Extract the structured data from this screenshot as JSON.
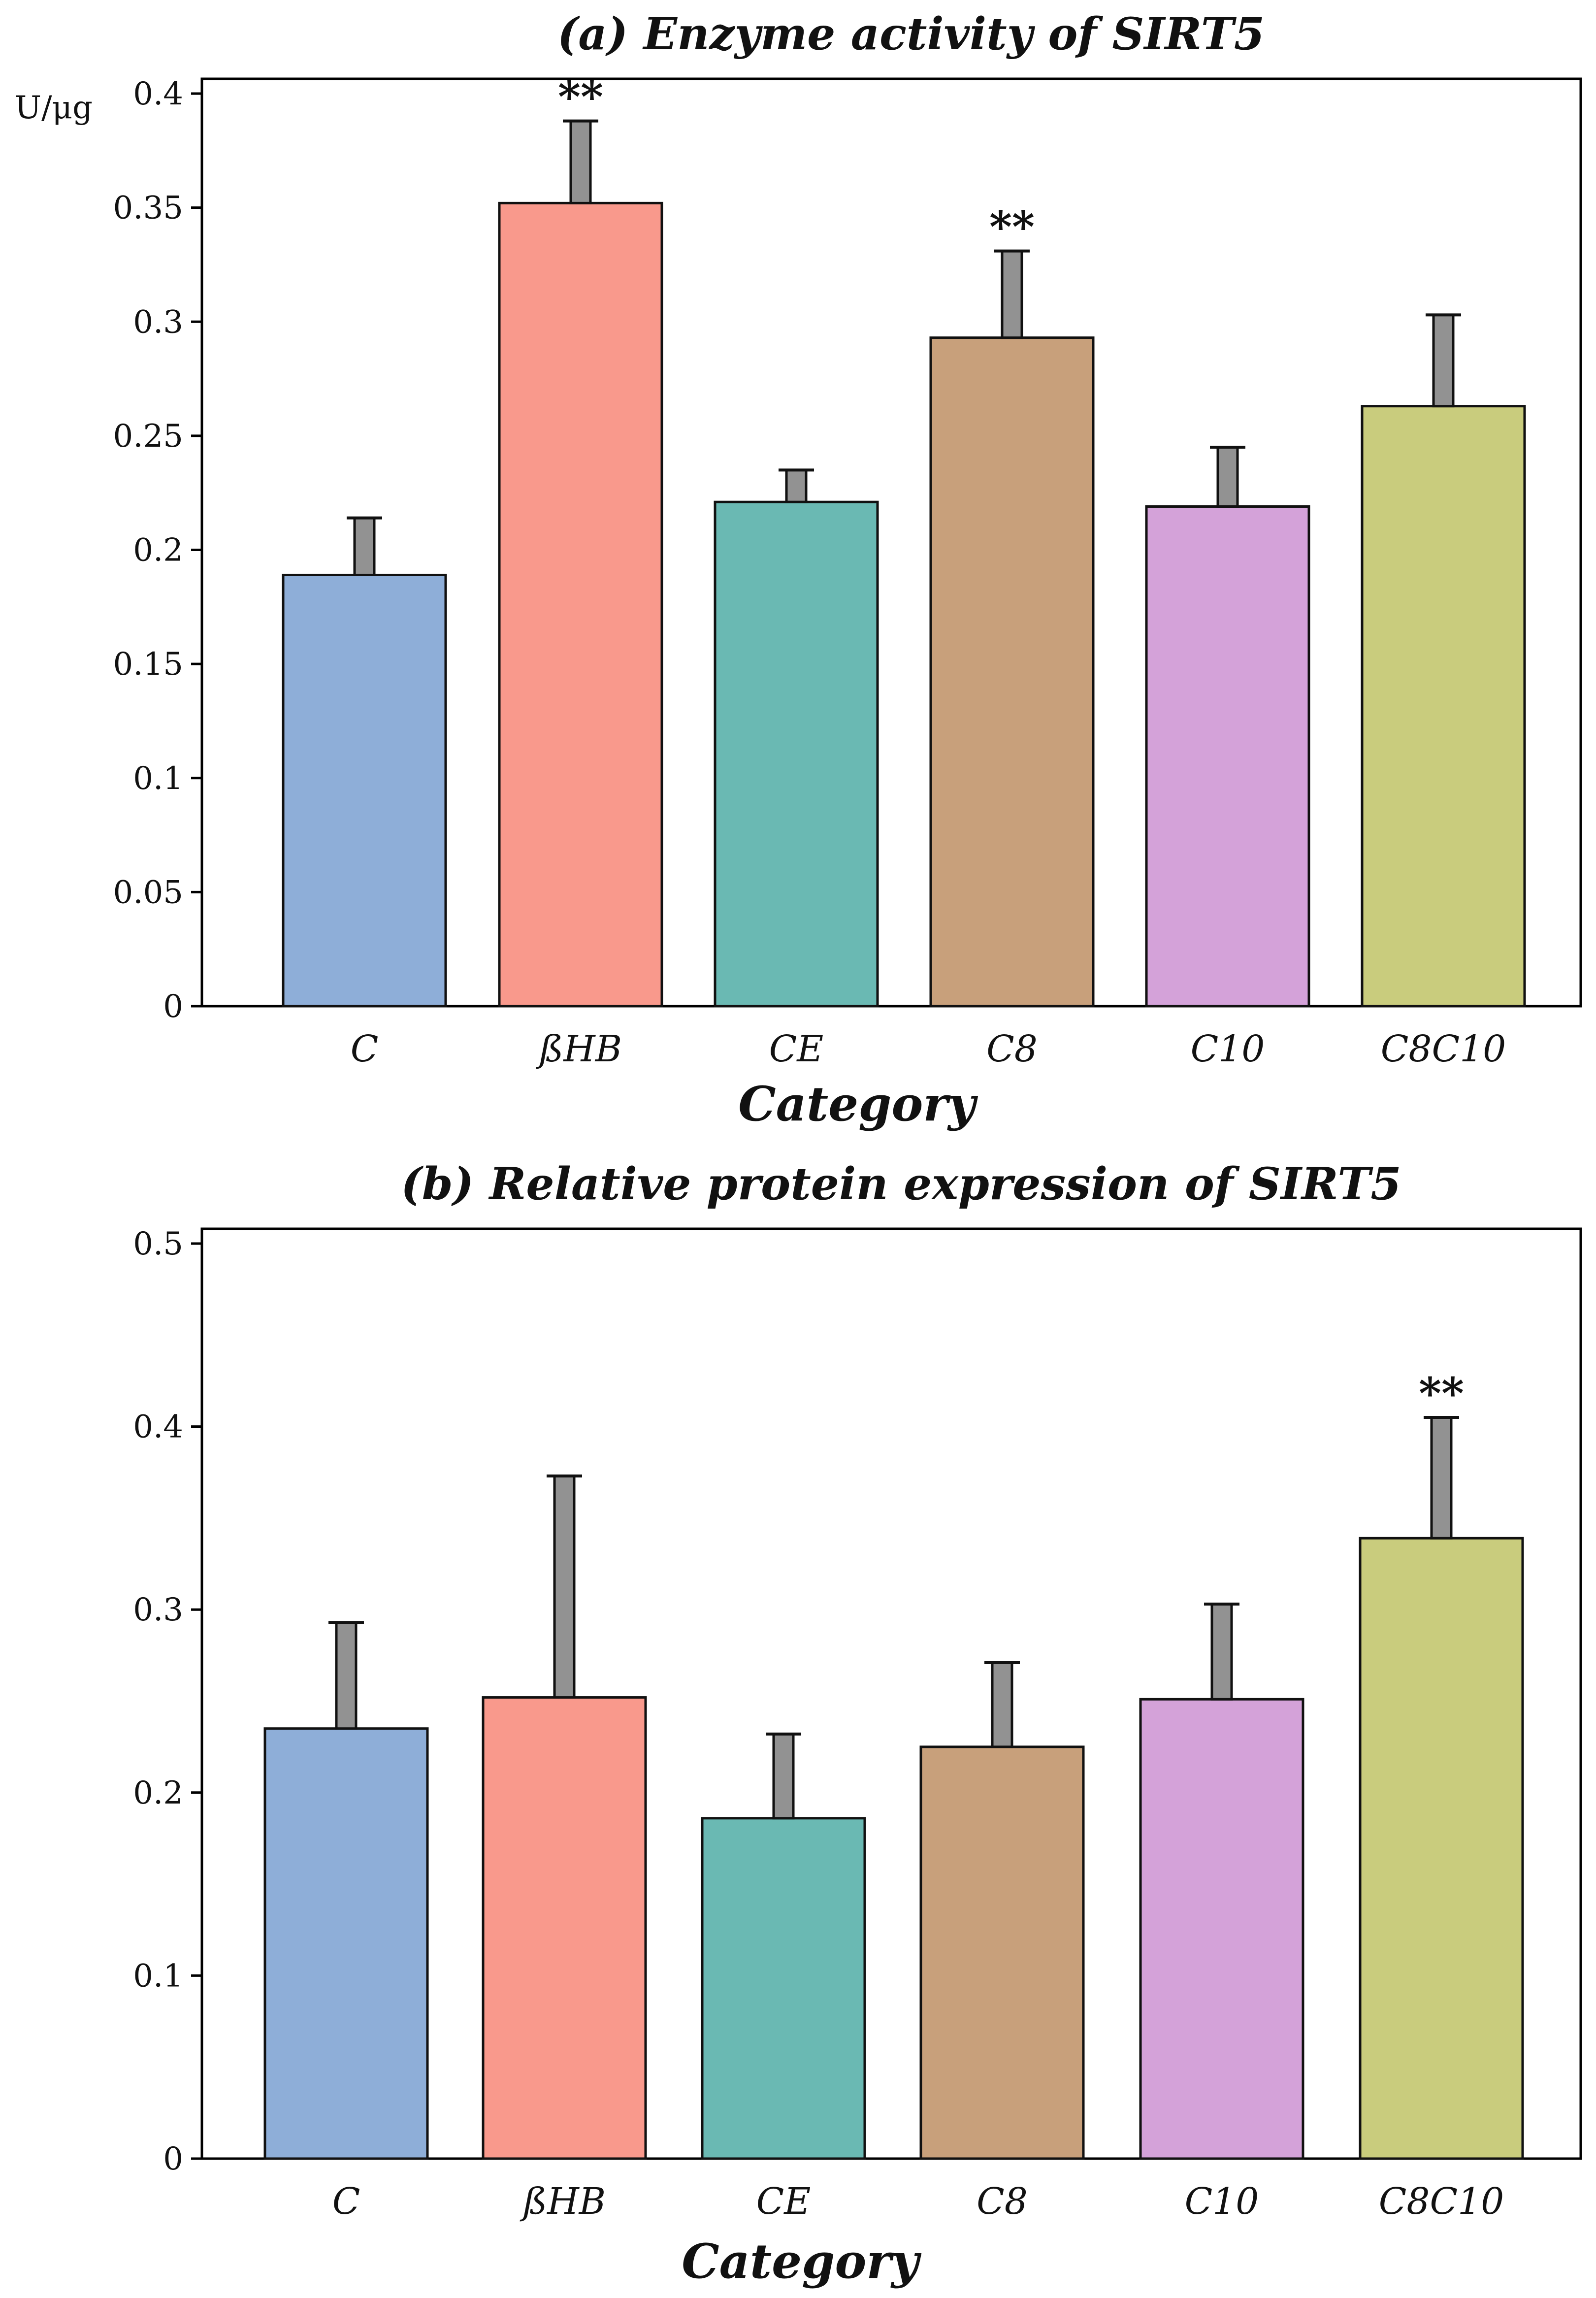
{
  "chart_data": [
    {
      "type": "bar",
      "title": "(a) Enzyme activity of SIRT5",
      "xlabel": "Category",
      "ylabel": "U/μg",
      "ylim": [
        0,
        0.4
      ],
      "yticks": [
        0,
        0.05,
        0.1,
        0.15,
        0.2,
        0.25,
        0.3,
        0.35,
        0.4
      ],
      "ytick_labels": [
        "0",
        "0.05",
        "0.1",
        "0.15",
        "0.2",
        "0.25",
        "0.3",
        "0.35",
        "0.4"
      ],
      "categories": [
        "C",
        "ßHB",
        "CE",
        "C8",
        "C10",
        "C8C10"
      ],
      "values": [
        0.189,
        0.352,
        0.221,
        0.293,
        0.219,
        0.263
      ],
      "errors": [
        0.025,
        0.036,
        0.014,
        0.038,
        0.026,
        0.04
      ],
      "significance": [
        "",
        "**",
        "",
        "**",
        "",
        ""
      ],
      "colors": [
        "#8eaed8",
        "#f9998c",
        "#6ab9b3",
        "#c8a07b",
        "#d4a2d9",
        "#c9cc7d"
      ]
    },
    {
      "type": "bar",
      "title": "(b) Relative protein expression of SIRT5",
      "xlabel": "Category",
      "ylabel": "",
      "ylim": [
        0,
        0.5
      ],
      "yticks": [
        0,
        0.1,
        0.2,
        0.3,
        0.4,
        0.5
      ],
      "ytick_labels": [
        "0",
        "0.1",
        "0.2",
        "0.3",
        "0.4",
        "0.5"
      ],
      "categories": [
        "C",
        "ßHB",
        "CE",
        "C8",
        "C10",
        "C8C10"
      ],
      "values": [
        0.235,
        0.252,
        0.186,
        0.225,
        0.251,
        0.339
      ],
      "errors": [
        0.058,
        0.121,
        0.046,
        0.046,
        0.052,
        0.066
      ],
      "significance": [
        "",
        "",
        "",
        "",
        "",
        "**"
      ],
      "colors": [
        "#8eaed8",
        "#f9998c",
        "#6ab9b3",
        "#c8a07b",
        "#d4a2d9",
        "#c9cc7d"
      ]
    }
  ]
}
